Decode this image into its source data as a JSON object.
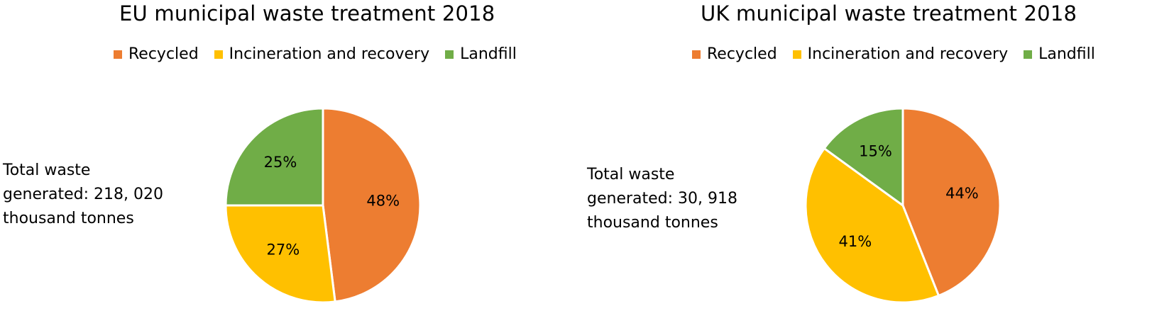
{
  "chart_data": [
    {
      "type": "pie",
      "title": "EU municipal waste treatment 2018",
      "categories": [
        "Recycled",
        "Incineration and recovery",
        "Landfill"
      ],
      "values": [
        48,
        27,
        25
      ],
      "value_labels": [
        "48%",
        "27%",
        "25%"
      ],
      "colors": [
        "#ed7d31",
        "#ffc000",
        "#70ad47"
      ],
      "legend_position": "top",
      "annotation": [
        "Total waste",
        "generated: 218, 020",
        "thousand tonnes"
      ]
    },
    {
      "type": "pie",
      "title": "UK municipal waste treatment 2018",
      "categories": [
        "Recycled",
        "Incineration and recovery",
        "Landfill"
      ],
      "values": [
        44,
        41,
        15
      ],
      "value_labels": [
        "44%",
        "41%",
        "15%"
      ],
      "colors": [
        "#ed7d31",
        "#ffc000",
        "#70ad47"
      ],
      "legend_position": "top",
      "annotation": [
        "Total waste",
        "generated:  30, 918",
        "thousand tonnes"
      ]
    }
  ]
}
